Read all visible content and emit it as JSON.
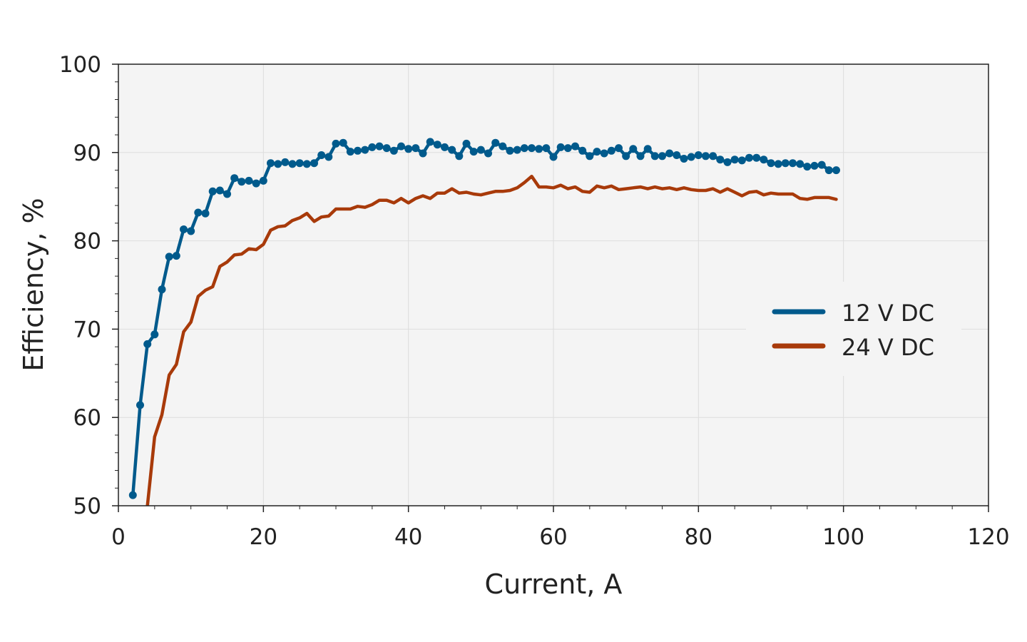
{
  "chart_data": {
    "type": "line",
    "title": "",
    "xlabel": "Current, A",
    "ylabel": "Efficiency, %",
    "xlim": [
      0,
      120
    ],
    "ylim": [
      50,
      100
    ],
    "xticks": [
      0,
      20,
      40,
      60,
      80,
      100,
      120
    ],
    "yticks": [
      50,
      60,
      70,
      80,
      90,
      100
    ],
    "grid": true,
    "legend_position": "right",
    "colors": {
      "plot_background": "#f4f4f4",
      "grid": "#dddddd",
      "axis": "#222222"
    },
    "series": [
      {
        "name": "12 V DC",
        "color": "#005a8c",
        "markers": true,
        "x": [
          2,
          3,
          4,
          5,
          6,
          7,
          8,
          9,
          10,
          11,
          12,
          13,
          14,
          15,
          16,
          17,
          18,
          19,
          20,
          21,
          22,
          23,
          24,
          25,
          26,
          27,
          28,
          29,
          30,
          31,
          32,
          33,
          34,
          35,
          36,
          37,
          38,
          39,
          40,
          41,
          42,
          43,
          44,
          45,
          46,
          47,
          48,
          49,
          50,
          51,
          52,
          53,
          54,
          55,
          56,
          57,
          58,
          59,
          60,
          61,
          62,
          63,
          64,
          65,
          66,
          67,
          68,
          69,
          70,
          71,
          72,
          73,
          74,
          75,
          76,
          77,
          78,
          79,
          80,
          81,
          82,
          83,
          84,
          85,
          86,
          87,
          88,
          89,
          90,
          91,
          92,
          93,
          94,
          95,
          96,
          97,
          98,
          99
        ],
        "y": [
          51.2,
          61.4,
          68.3,
          69.4,
          74.5,
          78.2,
          78.3,
          81.3,
          81.1,
          83.2,
          83.1,
          85.6,
          85.7,
          85.3,
          87.1,
          86.7,
          86.8,
          86.5,
          86.8,
          88.8,
          88.7,
          88.9,
          88.7,
          88.8,
          88.7,
          88.8,
          89.7,
          89.5,
          91.0,
          91.1,
          90.1,
          90.2,
          90.3,
          90.6,
          90.7,
          90.5,
          90.2,
          90.7,
          90.4,
          90.5,
          89.9,
          91.2,
          90.9,
          90.6,
          90.3,
          89.6,
          91.0,
          90.1,
          90.3,
          89.9,
          91.1,
          90.7,
          90.2,
          90.3,
          90.5,
          90.5,
          90.4,
          90.5,
          89.5,
          90.6,
          90.5,
          90.7,
          90.2,
          89.6,
          90.1,
          89.9,
          90.2,
          90.5,
          89.6,
          90.4,
          89.6,
          90.4,
          89.6,
          89.6,
          89.9,
          89.7,
          89.3,
          89.5,
          89.7,
          89.6,
          89.6,
          89.2,
          88.9,
          89.2,
          89.1,
          89.4,
          89.4,
          89.2,
          88.8,
          88.7,
          88.8,
          88.8,
          88.7,
          88.4,
          88.5,
          88.6,
          88.0,
          88.0
        ]
      },
      {
        "name": "24 V DC",
        "color": "#a83a0a",
        "markers": false,
        "x": [
          4,
          5,
          6,
          7,
          8,
          9,
          10,
          11,
          12,
          13,
          14,
          15,
          16,
          17,
          18,
          19,
          20,
          21,
          22,
          23,
          24,
          25,
          26,
          27,
          28,
          29,
          30,
          31,
          32,
          33,
          34,
          35,
          36,
          37,
          38,
          39,
          40,
          41,
          42,
          43,
          44,
          45,
          46,
          47,
          48,
          49,
          50,
          51,
          52,
          53,
          54,
          55,
          56,
          57,
          58,
          59,
          60,
          61,
          62,
          63,
          64,
          65,
          66,
          67,
          68,
          69,
          70,
          71,
          72,
          73,
          74,
          75,
          76,
          77,
          78,
          79,
          80,
          81,
          82,
          83,
          84,
          85,
          86,
          87,
          88,
          89,
          90,
          91,
          92,
          93,
          94,
          95,
          96,
          97,
          98,
          99
        ],
        "y": [
          50.0,
          57.8,
          60.3,
          64.8,
          66.0,
          69.7,
          70.8,
          73.7,
          74.4,
          74.8,
          77.1,
          77.6,
          78.4,
          78.5,
          79.1,
          79.0,
          79.6,
          81.2,
          81.6,
          81.7,
          82.3,
          82.6,
          83.1,
          82.2,
          82.7,
          82.8,
          83.6,
          83.6,
          83.6,
          83.9,
          83.8,
          84.1,
          84.6,
          84.6,
          84.3,
          84.8,
          84.3,
          84.8,
          85.1,
          84.8,
          85.4,
          85.4,
          85.9,
          85.4,
          85.5,
          85.3,
          85.2,
          85.4,
          85.6,
          85.6,
          85.7,
          86.0,
          86.6,
          87.3,
          86.1,
          86.1,
          86.0,
          86.3,
          85.9,
          86.1,
          85.6,
          85.5,
          86.2,
          86.0,
          86.2,
          85.8,
          85.9,
          86.0,
          86.1,
          85.9,
          86.1,
          85.9,
          86.0,
          85.8,
          86.0,
          85.8,
          85.7,
          85.7,
          85.9,
          85.5,
          85.9,
          85.5,
          85.1,
          85.5,
          85.6,
          85.2,
          85.4,
          85.3,
          85.3,
          85.3,
          84.8,
          84.7,
          84.9,
          84.9,
          84.9,
          84.7
        ]
      }
    ]
  }
}
